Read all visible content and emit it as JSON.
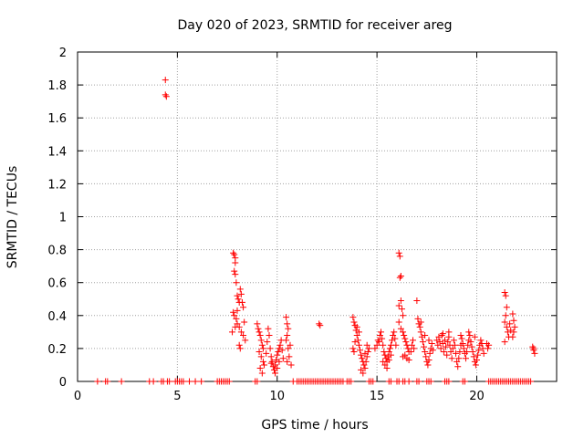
{
  "chart_data": {
    "type": "scatter",
    "title": "Day 020 of 2023, SRMTID for receiver areg",
    "xlabel": "GPS time / hours",
    "ylabel": "SRMTID / TECUs",
    "xlim": [
      0,
      24
    ],
    "ylim": [
      0,
      2
    ],
    "xticks": [
      0,
      5,
      10,
      15,
      20
    ],
    "yticks": [
      0,
      0.2,
      0.4,
      0.6,
      0.8,
      1,
      1.2,
      1.4,
      1.6,
      1.8,
      2
    ],
    "xtick_labels": [
      "0",
      "5",
      "10",
      "15",
      "20"
    ],
    "ytick_labels": [
      "0",
      "0.2",
      "0.4",
      "0.6",
      "0.8",
      "1",
      "1.2",
      "1.4",
      "1.6",
      "1.8",
      "2"
    ],
    "grid": true,
    "marker": "+",
    "color": "#ff0000",
    "series": [
      {
        "name": "SRMTID",
        "points": [
          [
            4.4,
            1.83
          ],
          [
            4.4,
            1.74
          ],
          [
            4.45,
            1.73
          ],
          [
            7.8,
            0.78
          ],
          [
            7.85,
            0.77
          ],
          [
            7.9,
            0.75
          ],
          [
            7.9,
            0.72
          ],
          [
            7.85,
            0.67
          ],
          [
            7.9,
            0.65
          ],
          [
            7.95,
            0.6
          ],
          [
            8.0,
            0.52
          ],
          [
            8.05,
            0.5
          ],
          [
            8.1,
            0.48
          ],
          [
            8.15,
            0.56
          ],
          [
            8.2,
            0.53
          ],
          [
            8.25,
            0.48
          ],
          [
            8.3,
            0.45
          ],
          [
            7.8,
            0.42
          ],
          [
            7.85,
            0.4
          ],
          [
            7.95,
            0.38
          ],
          [
            8.0,
            0.35
          ],
          [
            8.1,
            0.33
          ],
          [
            8.2,
            0.3
          ],
          [
            8.3,
            0.28
          ],
          [
            8.35,
            0.36
          ],
          [
            8.4,
            0.25
          ],
          [
            8.1,
            0.22
          ],
          [
            8.15,
            0.2
          ],
          [
            7.75,
            0.3
          ],
          [
            7.9,
            0.33
          ],
          [
            8.0,
            0.43
          ],
          [
            9.0,
            0.35
          ],
          [
            9.05,
            0.32
          ],
          [
            9.1,
            0.3
          ],
          [
            9.15,
            0.28
          ],
          [
            9.2,
            0.25
          ],
          [
            9.25,
            0.22
          ],
          [
            9.3,
            0.2
          ],
          [
            9.1,
            0.18
          ],
          [
            9.2,
            0.15
          ],
          [
            9.3,
            0.12
          ],
          [
            9.15,
            0.08
          ],
          [
            9.25,
            0.05
          ],
          [
            9.35,
            0.1
          ],
          [
            9.45,
            0.17
          ],
          [
            9.55,
            0.32
          ],
          [
            9.6,
            0.28
          ],
          [
            9.5,
            0.24
          ],
          [
            9.65,
            0.2
          ],
          [
            9.7,
            0.15
          ],
          [
            9.75,
            0.12
          ],
          [
            9.8,
            0.09
          ],
          [
            9.85,
            0.07
          ],
          [
            9.9,
            0.1
          ],
          [
            9.95,
            0.13
          ],
          [
            10.0,
            0.16
          ],
          [
            10.05,
            0.18
          ],
          [
            10.1,
            0.2
          ],
          [
            10.15,
            0.22
          ],
          [
            10.2,
            0.25
          ],
          [
            10.25,
            0.19
          ],
          [
            10.3,
            0.14
          ],
          [
            9.7,
            0.11
          ],
          [
            9.9,
            0.05
          ],
          [
            10.0,
            0.08
          ],
          [
            10.1,
            0.12
          ],
          [
            10.45,
            0.39
          ],
          [
            10.5,
            0.35
          ],
          [
            10.55,
            0.32
          ],
          [
            10.5,
            0.28
          ],
          [
            10.45,
            0.25
          ],
          [
            10.55,
            0.2
          ],
          [
            10.6,
            0.15
          ],
          [
            10.5,
            0.12
          ],
          [
            10.7,
            0.1
          ],
          [
            10.65,
            0.22
          ],
          [
            12.1,
            0.35
          ],
          [
            12.15,
            0.34
          ],
          [
            13.8,
            0.39
          ],
          [
            13.85,
            0.36
          ],
          [
            13.9,
            0.34
          ],
          [
            13.95,
            0.31
          ],
          [
            14.0,
            0.28
          ],
          [
            14.05,
            0.25
          ],
          [
            14.1,
            0.22
          ],
          [
            13.8,
            0.2
          ],
          [
            13.85,
            0.18
          ],
          [
            13.9,
            0.24
          ],
          [
            14.15,
            0.19
          ],
          [
            14.2,
            0.16
          ],
          [
            14.25,
            0.14
          ],
          [
            14.3,
            0.12
          ],
          [
            14.35,
            0.1
          ],
          [
            14.4,
            0.08
          ],
          [
            14.45,
            0.12
          ],
          [
            14.5,
            0.15
          ],
          [
            14.55,
            0.18
          ],
          [
            14.6,
            0.2
          ],
          [
            14.2,
            0.07
          ],
          [
            14.3,
            0.05
          ],
          [
            14.4,
            0.17
          ],
          [
            14.5,
            0.22
          ],
          [
            14.1,
            0.3
          ],
          [
            14.0,
            0.33
          ],
          [
            14.9,
            0.2
          ],
          [
            15.0,
            0.22
          ],
          [
            15.05,
            0.25
          ],
          [
            15.1,
            0.24
          ],
          [
            15.15,
            0.28
          ],
          [
            15.2,
            0.3
          ],
          [
            15.25,
            0.26
          ],
          [
            15.3,
            0.22
          ],
          [
            15.35,
            0.18
          ],
          [
            15.4,
            0.16
          ],
          [
            15.45,
            0.14
          ],
          [
            15.5,
            0.12
          ],
          [
            15.55,
            0.15
          ],
          [
            15.6,
            0.18
          ],
          [
            15.65,
            0.2
          ],
          [
            15.7,
            0.22
          ],
          [
            15.75,
            0.25
          ],
          [
            15.8,
            0.28
          ],
          [
            15.85,
            0.3
          ],
          [
            15.9,
            0.26
          ],
          [
            15.95,
            0.22
          ],
          [
            15.3,
            0.12
          ],
          [
            15.4,
            0.1
          ],
          [
            15.5,
            0.08
          ],
          [
            15.6,
            0.13
          ],
          [
            15.7,
            0.16
          ],
          [
            16.1,
            0.78
          ],
          [
            16.15,
            0.76
          ],
          [
            16.2,
            0.64
          ],
          [
            16.15,
            0.63
          ],
          [
            16.2,
            0.49
          ],
          [
            16.1,
            0.46
          ],
          [
            16.25,
            0.44
          ],
          [
            16.3,
            0.4
          ],
          [
            16.1,
            0.36
          ],
          [
            16.2,
            0.32
          ],
          [
            16.3,
            0.3
          ],
          [
            16.35,
            0.28
          ],
          [
            16.4,
            0.26
          ],
          [
            16.45,
            0.24
          ],
          [
            16.5,
            0.22
          ],
          [
            16.55,
            0.2
          ],
          [
            16.6,
            0.18
          ],
          [
            16.4,
            0.16
          ],
          [
            16.3,
            0.15
          ],
          [
            16.5,
            0.14
          ],
          [
            16.6,
            0.13
          ],
          [
            16.7,
            0.18
          ],
          [
            16.75,
            0.22
          ],
          [
            16.8,
            0.25
          ],
          [
            16.85,
            0.2
          ],
          [
            17.0,
            0.49
          ],
          [
            17.05,
            0.38
          ],
          [
            17.1,
            0.35
          ],
          [
            17.15,
            0.33
          ],
          [
            17.2,
            0.3
          ],
          [
            17.25,
            0.27
          ],
          [
            17.3,
            0.24
          ],
          [
            17.35,
            0.21
          ],
          [
            17.4,
            0.18
          ],
          [
            17.45,
            0.15
          ],
          [
            17.5,
            0.12
          ],
          [
            17.55,
            0.1
          ],
          [
            17.6,
            0.13
          ],
          [
            17.65,
            0.17
          ],
          [
            17.7,
            0.2
          ],
          [
            17.75,
            0.23
          ],
          [
            17.8,
            0.19
          ],
          [
            17.2,
            0.36
          ],
          [
            17.4,
            0.28
          ],
          [
            17.6,
            0.25
          ],
          [
            18.0,
            0.25
          ],
          [
            18.05,
            0.22
          ],
          [
            18.1,
            0.27
          ],
          [
            18.15,
            0.24
          ],
          [
            18.2,
            0.2
          ],
          [
            18.25,
            0.28
          ],
          [
            18.3,
            0.23
          ],
          [
            18.35,
            0.18
          ],
          [
            18.4,
            0.25
          ],
          [
            18.45,
            0.21
          ],
          [
            18.5,
            0.16
          ],
          [
            18.55,
            0.24
          ],
          [
            18.6,
            0.27
          ],
          [
            18.65,
            0.22
          ],
          [
            18.7,
            0.18
          ],
          [
            18.75,
            0.14
          ],
          [
            18.8,
            0.2
          ],
          [
            18.85,
            0.25
          ],
          [
            18.9,
            0.22
          ],
          [
            18.95,
            0.17
          ],
          [
            19.0,
            0.12
          ],
          [
            19.05,
            0.09
          ],
          [
            19.1,
            0.14
          ],
          [
            19.15,
            0.18
          ],
          [
            19.2,
            0.22
          ],
          [
            19.25,
            0.26
          ],
          [
            19.3,
            0.23
          ],
          [
            19.35,
            0.2
          ],
          [
            19.4,
            0.17
          ],
          [
            19.45,
            0.14
          ],
          [
            19.5,
            0.18
          ],
          [
            19.55,
            0.22
          ],
          [
            19.6,
            0.25
          ],
          [
            19.65,
            0.28
          ],
          [
            19.7,
            0.24
          ],
          [
            19.75,
            0.21
          ],
          [
            19.8,
            0.18
          ],
          [
            19.85,
            0.15
          ],
          [
            19.9,
            0.12
          ],
          [
            19.95,
            0.1
          ],
          [
            20.0,
            0.13
          ],
          [
            20.05,
            0.16
          ],
          [
            20.1,
            0.19
          ],
          [
            20.15,
            0.22
          ],
          [
            20.2,
            0.25
          ],
          [
            20.25,
            0.23
          ],
          [
            20.3,
            0.2
          ],
          [
            20.35,
            0.17
          ],
          [
            18.3,
            0.29
          ],
          [
            18.6,
            0.3
          ],
          [
            19.2,
            0.28
          ],
          [
            19.6,
            0.3
          ],
          [
            19.9,
            0.27
          ],
          [
            20.5,
            0.23
          ],
          [
            20.55,
            0.2
          ],
          [
            20.6,
            0.22
          ],
          [
            21.4,
            0.54
          ],
          [
            21.45,
            0.52
          ],
          [
            21.5,
            0.45
          ],
          [
            21.45,
            0.4
          ],
          [
            21.4,
            0.36
          ],
          [
            21.5,
            0.33
          ],
          [
            21.55,
            0.3
          ],
          [
            21.6,
            0.27
          ],
          [
            21.4,
            0.24
          ],
          [
            21.65,
            0.35
          ],
          [
            21.7,
            0.31
          ],
          [
            21.8,
            0.41
          ],
          [
            21.85,
            0.37
          ],
          [
            21.9,
            0.33
          ],
          [
            21.85,
            0.3
          ],
          [
            21.8,
            0.27
          ],
          [
            22.8,
            0.21
          ],
          [
            22.85,
            0.19
          ],
          [
            22.9,
            0.17
          ],
          [
            22.85,
            0.2
          ]
        ],
        "zero_points_x": [
          1.0,
          1.4,
          1.5,
          2.2,
          3.6,
          3.8,
          4.2,
          4.3,
          4.5,
          4.6,
          4.9,
          5.0,
          5.1,
          5.2,
          5.3,
          5.6,
          5.9,
          6.2,
          7.0,
          7.1,
          7.2,
          7.3,
          7.4,
          7.5,
          7.6,
          8.9,
          9.0,
          10.8,
          11.0,
          11.1,
          11.2,
          11.3,
          11.4,
          11.5,
          11.6,
          11.7,
          11.8,
          11.9,
          12.0,
          12.1,
          12.2,
          12.3,
          12.4,
          12.5,
          12.6,
          12.7,
          12.8,
          12.9,
          13.0,
          13.1,
          13.2,
          13.3,
          13.5,
          13.6,
          13.7,
          14.6,
          14.7,
          14.8,
          15.6,
          15.7,
          16.0,
          16.1,
          16.3,
          16.4,
          16.6,
          17.0,
          17.1,
          17.5,
          17.6,
          17.7,
          18.4,
          18.5,
          18.6,
          19.3,
          19.4,
          20.6,
          20.7,
          20.8,
          20.9,
          21.0,
          21.1,
          21.2,
          21.3,
          21.4,
          21.5,
          21.6,
          21.7,
          21.8,
          21.9,
          22.0,
          22.1,
          22.2,
          22.3,
          22.4,
          22.5,
          22.6,
          22.7
        ]
      }
    ]
  }
}
